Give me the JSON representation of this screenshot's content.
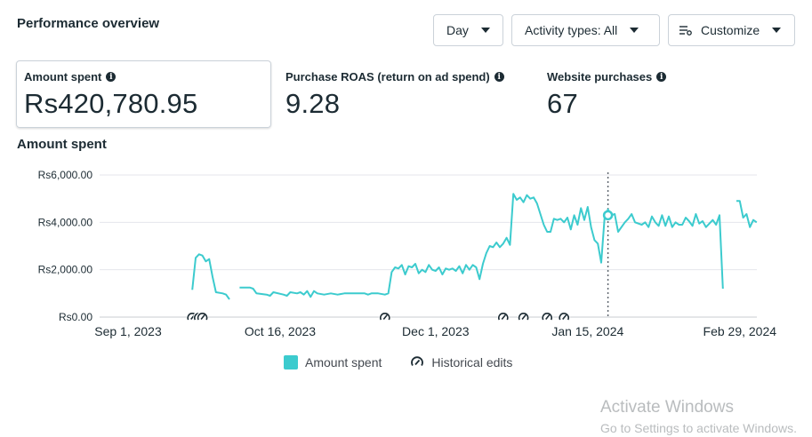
{
  "header": {
    "title": "Performance overview"
  },
  "controls": {
    "day_label": "Day",
    "activity_label": "Activity types: All",
    "customize_label": "Customize"
  },
  "metrics": [
    {
      "label": "Amount spent",
      "value": "Rs420,780.95"
    },
    {
      "label": "Purchase ROAS (return on ad spend)",
      "value": "9.28"
    },
    {
      "label": "Website purchases",
      "value": "67"
    }
  ],
  "chart_section": {
    "title": "Amount spent"
  },
  "chart_data": {
    "type": "line",
    "xlabel": "",
    "ylabel": "",
    "ylim": [
      0,
      6000
    ],
    "y_ticks": [
      0,
      2000,
      4000,
      6000
    ],
    "y_tick_labels": [
      "Rs0.00",
      "Rs2,000.00",
      "Rs4,000.00",
      "Rs6,000.00"
    ],
    "x_tick_labels": [
      "Sep 1, 2023",
      "Oct 16, 2023",
      "Dec 1, 2023",
      "Jan 15, 2024",
      "Feb 29, 2024"
    ],
    "x_tick_days": [
      0,
      45,
      91,
      136,
      181
    ],
    "grid": true,
    "legend_position": "bottom",
    "series": [
      {
        "name": "Amount spent",
        "color": "#3ccbce",
        "segments": [
          [
            [
              19,
              1150
            ],
            [
              20,
              2500
            ],
            [
              21,
              2650
            ],
            [
              22,
              2600
            ],
            [
              23,
              2350
            ],
            [
              24,
              2450
            ],
            [
              25,
              1700
            ],
            [
              26,
              1050
            ],
            [
              28,
              1000
            ],
            [
              29,
              950
            ],
            [
              30,
              750
            ]
          ],
          [
            [
              33,
              1250
            ],
            [
              36,
              1250
            ],
            [
              37,
              1200
            ],
            [
              38,
              1000
            ],
            [
              41,
              950
            ],
            [
              42,
              900
            ],
            [
              43,
              1050
            ],
            [
              46,
              950
            ],
            [
              47,
              900
            ],
            [
              48,
              1050
            ],
            [
              50,
              1000
            ],
            [
              51,
              1050
            ],
            [
              52,
              950
            ],
            [
              53,
              1100
            ],
            [
              54,
              850
            ],
            [
              55,
              1100
            ],
            [
              56,
              1000
            ],
            [
              58,
              950
            ],
            [
              60,
              1000
            ],
            [
              62,
              950
            ],
            [
              64,
              1000
            ],
            [
              66,
              1000
            ],
            [
              68,
              1000
            ],
            [
              70,
              1000
            ],
            [
              71,
              950
            ],
            [
              72,
              1000
            ],
            [
              74,
              1000
            ],
            [
              76,
              950
            ],
            [
              77,
              1000
            ],
            [
              78,
              1900
            ],
            [
              79,
              2100
            ],
            [
              80,
              2050
            ],
            [
              81,
              2200
            ],
            [
              82,
              1800
            ],
            [
              83,
              2150
            ],
            [
              84,
              2100
            ],
            [
              85,
              2250
            ],
            [
              86,
              1850
            ],
            [
              87,
              2000
            ],
            [
              88,
              1900
            ],
            [
              89,
              2200
            ],
            [
              90,
              2000
            ],
            [
              91,
              1950
            ],
            [
              92,
              2100
            ],
            [
              93,
              1800
            ],
            [
              94,
              2050
            ],
            [
              95,
              2000
            ],
            [
              96,
              2050
            ],
            [
              97,
              1950
            ],
            [
              98,
              2150
            ],
            [
              99,
              1850
            ],
            [
              100,
              2200
            ],
            [
              101,
              2000
            ],
            [
              102,
              2200
            ],
            [
              103,
              2100
            ],
            [
              104,
              1600
            ],
            [
              105,
              2250
            ],
            [
              106,
              2700
            ],
            [
              107,
              3000
            ],
            [
              108,
              2950
            ],
            [
              109,
              3150
            ],
            [
              110,
              2950
            ],
            [
              111,
              3100
            ],
            [
              112,
              3350
            ],
            [
              113,
              3050
            ],
            [
              114,
              5200
            ],
            [
              115,
              4950
            ],
            [
              116,
              5050
            ],
            [
              117,
              4850
            ],
            [
              118,
              5150
            ],
            [
              119,
              5000
            ],
            [
              120,
              5050
            ],
            [
              121,
              4800
            ],
            [
              122,
              4350
            ],
            [
              123,
              3900
            ],
            [
              124,
              3600
            ],
            [
              125,
              3600
            ],
            [
              126,
              4150
            ],
            [
              127,
              4100
            ],
            [
              128,
              4150
            ],
            [
              129,
              4000
            ],
            [
              130,
              4200
            ],
            [
              131,
              3700
            ],
            [
              132,
              4300
            ],
            [
              133,
              3900
            ],
            [
              134,
              4600
            ],
            [
              135,
              4100
            ],
            [
              136,
              4650
            ],
            [
              137,
              3800
            ],
            [
              138,
              3250
            ],
            [
              139,
              3100
            ],
            [
              140,
              2300
            ],
            [
              141,
              4200
            ],
            [
              142,
              4550
            ],
            [
              143,
              4300
            ],
            [
              144,
              4350
            ],
            [
              145,
              3600
            ],
            [
              147,
              4000
            ],
            [
              148,
              4150
            ],
            [
              149,
              4350
            ],
            [
              150,
              4000
            ],
            [
              152,
              3900
            ],
            [
              153,
              4000
            ],
            [
              154,
              3800
            ],
            [
              155,
              4250
            ],
            [
              156,
              4000
            ],
            [
              157,
              3850
            ],
            [
              158,
              4300
            ],
            [
              159,
              3850
            ],
            [
              160,
              4250
            ],
            [
              161,
              3800
            ],
            [
              162,
              4000
            ],
            [
              163,
              3900
            ],
            [
              164,
              3900
            ],
            [
              165,
              4200
            ],
            [
              166,
              4050
            ],
            [
              167,
              3850
            ],
            [
              168,
              4350
            ],
            [
              169,
              3950
            ],
            [
              170,
              4050
            ],
            [
              171,
              3800
            ],
            [
              172,
              3950
            ],
            [
              173,
              4100
            ],
            [
              174,
              3900
            ],
            [
              175,
              4300
            ],
            [
              176,
              1200
            ]
          ],
          [
            [
              180,
              4900
            ],
            [
              181,
              4900
            ],
            [
              182,
              4200
            ],
            [
              183,
              4350
            ],
            [
              184,
              3800
            ],
            [
              185,
              4100
            ],
            [
              186,
              4000
            ]
          ]
        ]
      }
    ],
    "highlight": {
      "x": 142,
      "y": 4300
    },
    "historical_edit_days": [
      19,
      21,
      22,
      76,
      111,
      117,
      124,
      129
    ],
    "legend": [
      "Amount spent",
      "Historical edits"
    ]
  },
  "watermark": {
    "line1": "Activate Windows",
    "line2": "Go to Settings to activate Windows."
  }
}
